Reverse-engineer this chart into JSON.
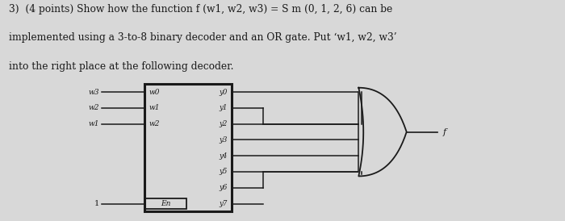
{
  "bg_color": "#d8d8d8",
  "text_color": "#1a1a1a",
  "box_color": "#1a1a1a",
  "line1": "3)  (4 points) Show how the function f (w1, w2, w3) = S m (0, 1, 2, 6) can be",
  "line2": "implemented using a 3-to-8 binary decoder and an OR gate. Put ‘w1, w2, w3’",
  "line3": "into the right place at the following decoder.",
  "inputs_outside": [
    "w3",
    "w2",
    "w1"
  ],
  "inputs_inside": [
    "w0",
    "w1",
    "w2"
  ],
  "outputs": [
    "y0",
    "y1",
    "y2",
    "y3",
    "y4",
    "y5",
    "y6",
    "y7"
  ],
  "en_label": "En",
  "en_input": "1",
  "or_connected": [
    0,
    1,
    2,
    3,
    4,
    5,
    6
  ],
  "or_short": [
    1,
    6
  ],
  "output_label": "f",
  "bx": 0.255,
  "by": 0.04,
  "bw": 0.155,
  "bh": 0.58
}
